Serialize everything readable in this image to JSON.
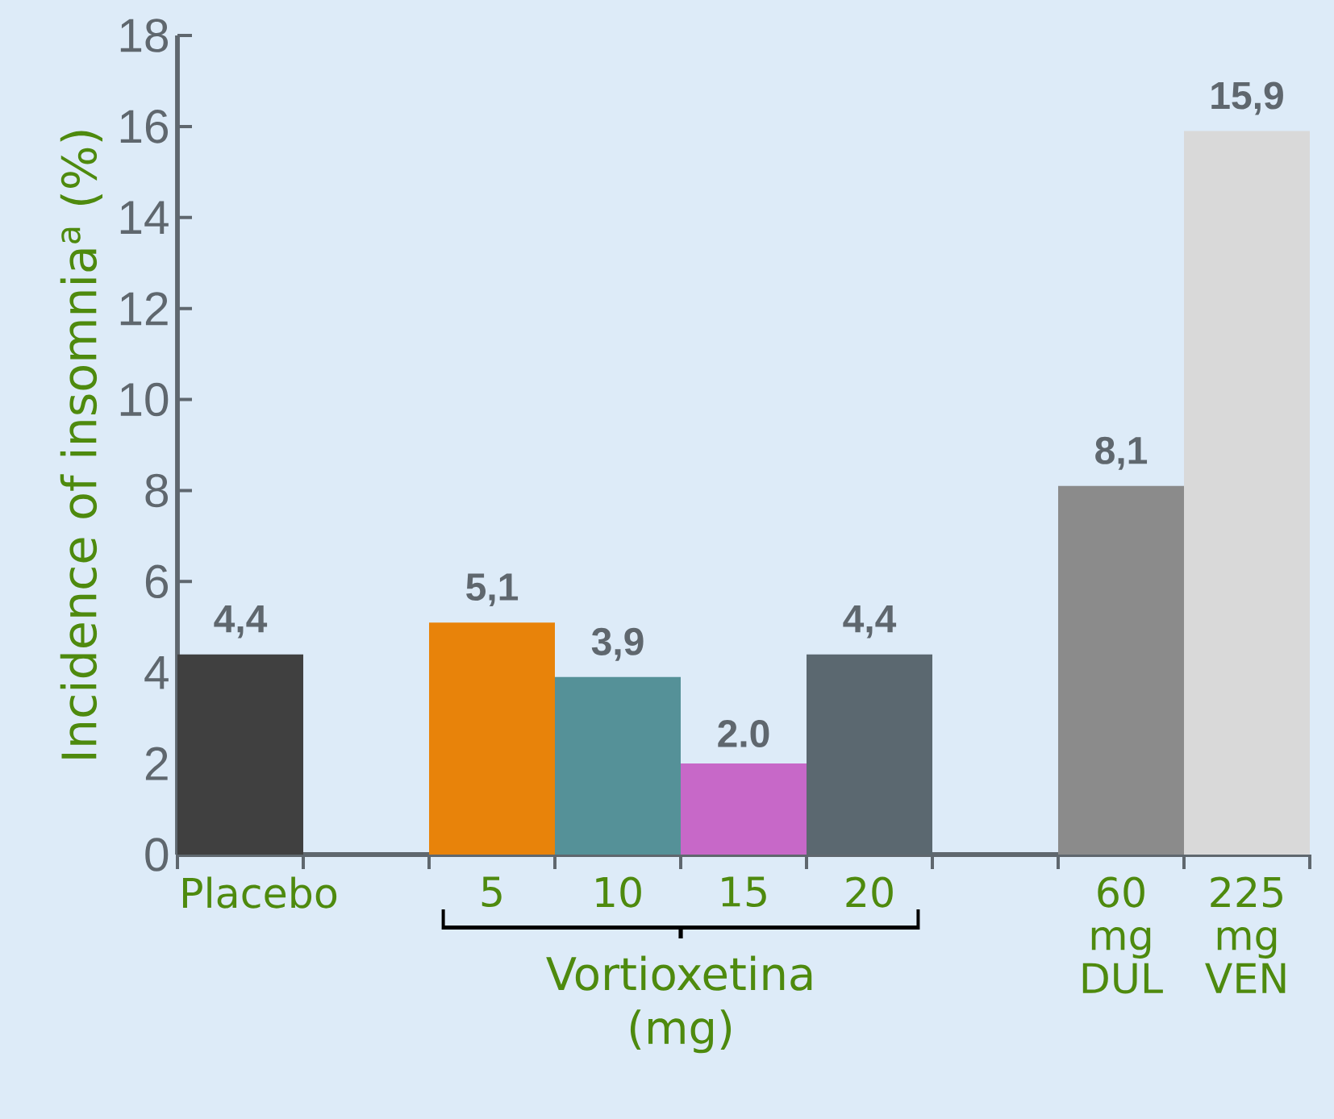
{
  "chart_data": {
    "type": "bar",
    "ylabel": "Incidence of insomnia$^{a}$ (%)",
    "categories": [
      "Placebo",
      null,
      "5",
      "10",
      "15",
      "20",
      null,
      "60 mg DUL",
      "225 mg VEN"
    ],
    "values": [
      4.4,
      null,
      5.1,
      3.9,
      2.0,
      4.4,
      null,
      8.1,
      15.9
    ],
    "value_labels": [
      "4,4",
      null,
      "5,1",
      "3,9",
      "2.0",
      "4,4",
      null,
      "8,1",
      "15,9"
    ],
    "colors": [
      "#404040",
      null,
      "#e8830a",
      "#559198",
      "#c768c8",
      "#5b6870",
      null,
      "#8b8b8b",
      "#d9d9d9"
    ],
    "ylim": [
      0,
      18
    ],
    "yticks": [
      0,
      2,
      4,
      6,
      8,
      10,
      12,
      14,
      16,
      18
    ],
    "annotations": [
      "Vortioxetina (mg)"
    ]
  }
}
